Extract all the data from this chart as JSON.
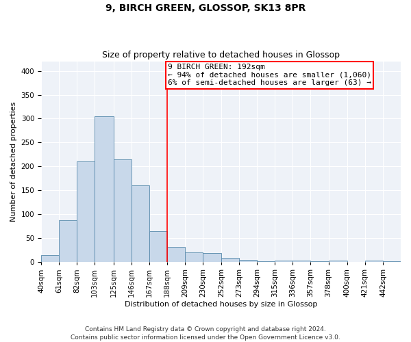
{
  "title": "9, BIRCH GREEN, GLOSSOP, SK13 8PR",
  "subtitle": "Size of property relative to detached houses in Glossop",
  "xlabel": "Distribution of detached houses by size in Glossop",
  "ylabel": "Number of detached properties",
  "bar_color": "#c8d8ea",
  "bar_edge_color": "#5588aa",
  "background_color": "#eef2f8",
  "annotation_text": "9 BIRCH GREEN: 192sqm\n← 94% of detached houses are smaller (1,060)\n6% of semi-detached houses are larger (63) →",
  "vline_x": 188,
  "vline_color": "red",
  "bin_edges": [
    40,
    61,
    82,
    103,
    125,
    146,
    167,
    188,
    209,
    230,
    252,
    273,
    294,
    315,
    336,
    357,
    378,
    400,
    421,
    442,
    463
  ],
  "bar_heights": [
    15,
    88,
    210,
    305,
    215,
    160,
    65,
    32,
    20,
    19,
    9,
    5,
    2,
    3,
    3,
    2,
    3,
    0,
    3,
    2
  ],
  "ylim": [
    0,
    420
  ],
  "yticks": [
    0,
    50,
    100,
    150,
    200,
    250,
    300,
    350,
    400
  ],
  "footnote": "Contains HM Land Registry data © Crown copyright and database right 2024.\nContains public sector information licensed under the Open Government Licence v3.0.",
  "title_fontsize": 10,
  "subtitle_fontsize": 9,
  "axis_label_fontsize": 8,
  "tick_fontsize": 7.5,
  "annotation_fontsize": 8,
  "footnote_fontsize": 6.5
}
